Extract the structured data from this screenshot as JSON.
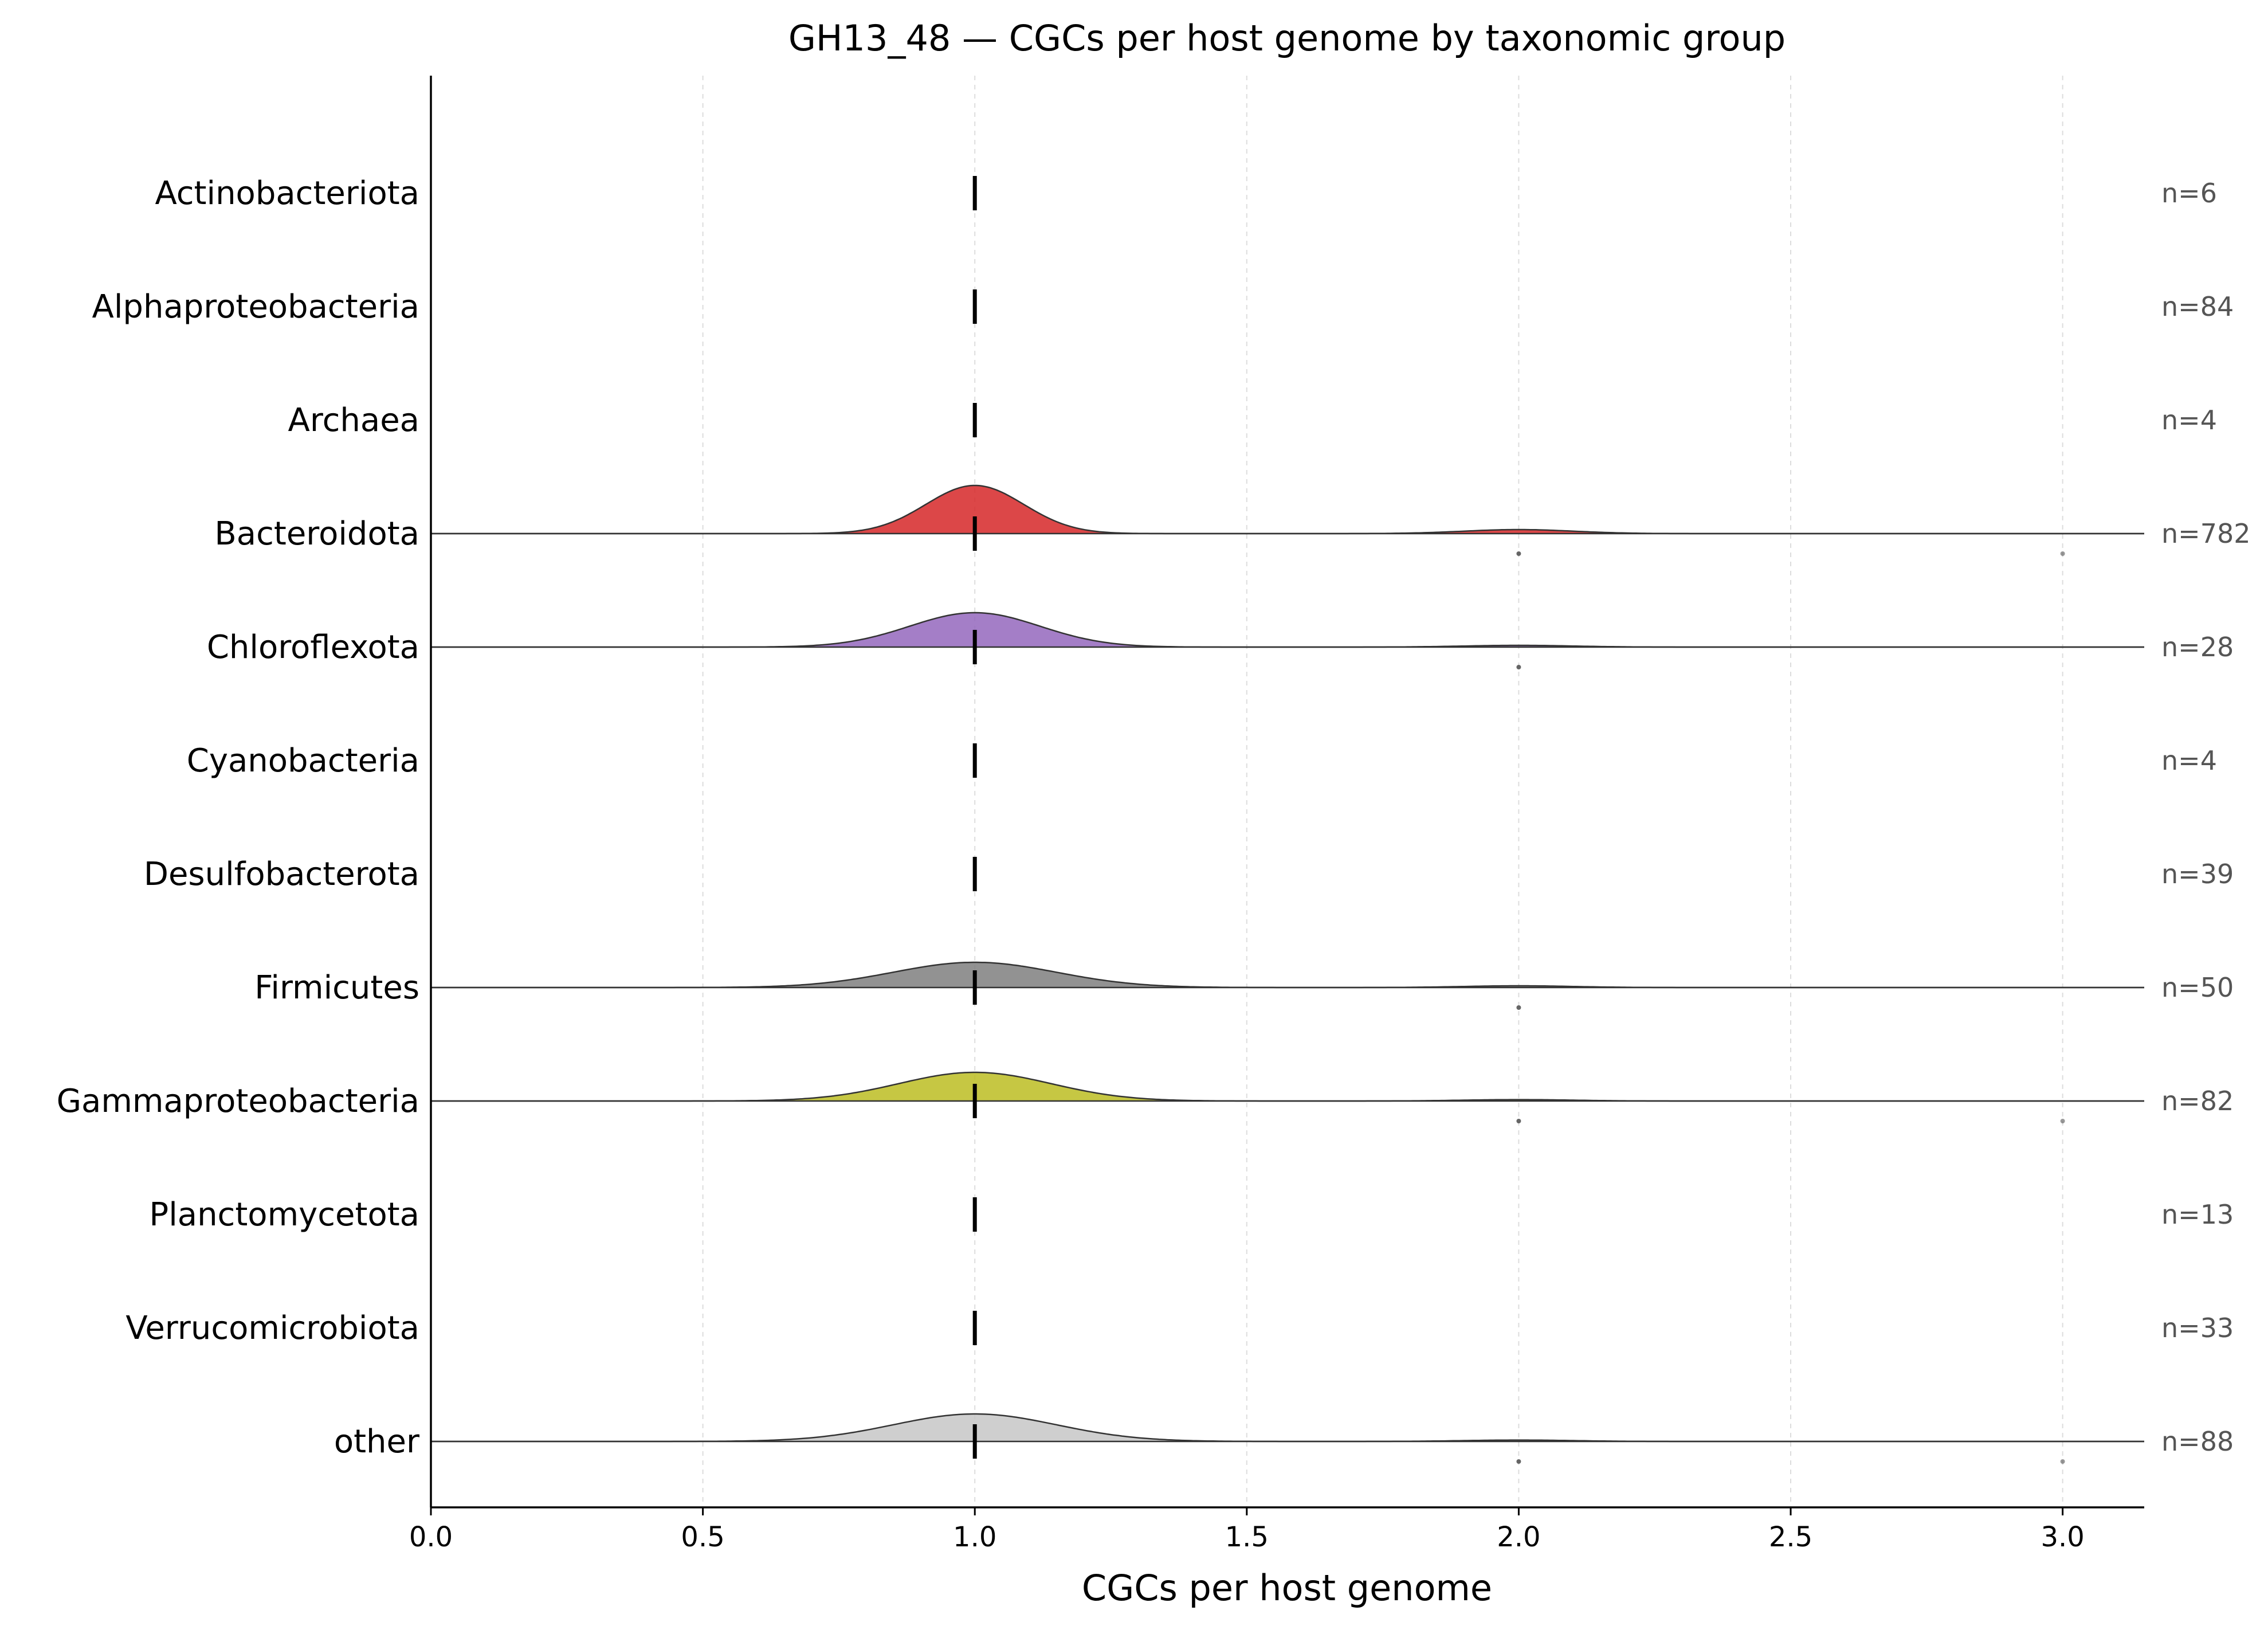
{
  "chart_data": {
    "type": "ridgeline",
    "title": "GH13_48 — CGCs per host genome by taxonomic group",
    "xlabel": "CGCs per host genome",
    "ylabel": "",
    "xlim": [
      0.0,
      3.15
    ],
    "xticks": [
      0.0,
      0.5,
      1.0,
      1.5,
      2.0,
      2.5,
      3.0
    ],
    "xtick_labels": [
      "0.0",
      "0.5",
      "1.0",
      "1.5",
      "2.0",
      "2.5",
      "3.0"
    ],
    "grid": "x-dashed",
    "groups": [
      {
        "name": "Actinobacteriota",
        "n_label": "n=6",
        "median": 1.0,
        "has_density": false,
        "color": "",
        "peak": 0,
        "bw": 0,
        "secondary": [],
        "outliers": []
      },
      {
        "name": "Alphaproteobacteria",
        "n_label": "n=84",
        "median": 1.0,
        "has_density": false,
        "color": "",
        "peak": 0,
        "bw": 0,
        "secondary": [],
        "outliers": []
      },
      {
        "name": "Archaea",
        "n_label": "n=4",
        "median": 1.0,
        "has_density": false,
        "color": "",
        "peak": 0,
        "bw": 0,
        "secondary": [],
        "outliers": []
      },
      {
        "name": "Bacteroidota",
        "n_label": "n=782",
        "median": 1.0,
        "has_density": true,
        "color": "#d62728",
        "peak": 0.42,
        "bw": 0.09,
        "secondary": [
          {
            "x": 2.0,
            "h": 0.035
          }
        ],
        "outliers": [
          2.0,
          3.0
        ]
      },
      {
        "name": "Chloroflexota",
        "n_label": "n=28",
        "median": 1.0,
        "has_density": true,
        "color": "#9467bd",
        "peak": 0.3,
        "bw": 0.12,
        "secondary": [
          {
            "x": 2.0,
            "h": 0.015
          }
        ],
        "outliers": [
          2.0
        ]
      },
      {
        "name": "Cyanobacteria",
        "n_label": "n=4",
        "median": 1.0,
        "has_density": false,
        "color": "",
        "peak": 0,
        "bw": 0,
        "secondary": [],
        "outliers": []
      },
      {
        "name": "Desulfobacterota",
        "n_label": "n=39",
        "median": 1.0,
        "has_density": false,
        "color": "",
        "peak": 0,
        "bw": 0,
        "secondary": [],
        "outliers": []
      },
      {
        "name": "Firmicutes",
        "n_label": "n=50",
        "median": 1.0,
        "has_density": true,
        "color": "#7f7f7f",
        "peak": 0.22,
        "bw": 0.15,
        "secondary": [
          {
            "x": 2.0,
            "h": 0.015
          }
        ],
        "outliers": [
          2.0
        ]
      },
      {
        "name": "Gammaproteobacteria",
        "n_label": "n=82",
        "median": 1.0,
        "has_density": true,
        "color": "#bcbd22",
        "peak": 0.25,
        "bw": 0.14,
        "secondary": [
          {
            "x": 2.0,
            "h": 0.012
          }
        ],
        "outliers": [
          2.0,
          3.0
        ]
      },
      {
        "name": "Planctomycetota",
        "n_label": "n=13",
        "median": 1.0,
        "has_density": false,
        "color": "",
        "peak": 0,
        "bw": 0,
        "secondary": [],
        "outliers": []
      },
      {
        "name": "Verrucomicrobiota",
        "n_label": "n=33",
        "median": 1.0,
        "has_density": false,
        "color": "",
        "peak": 0,
        "bw": 0,
        "secondary": [],
        "outliers": []
      },
      {
        "name": "other",
        "n_label": "n=88",
        "median": 1.0,
        "has_density": true,
        "color": "#c7c7c7",
        "peak": 0.24,
        "bw": 0.15,
        "secondary": [
          {
            "x": 2.0,
            "h": 0.012
          }
        ],
        "outliers": [
          2.0,
          3.0
        ]
      }
    ]
  }
}
